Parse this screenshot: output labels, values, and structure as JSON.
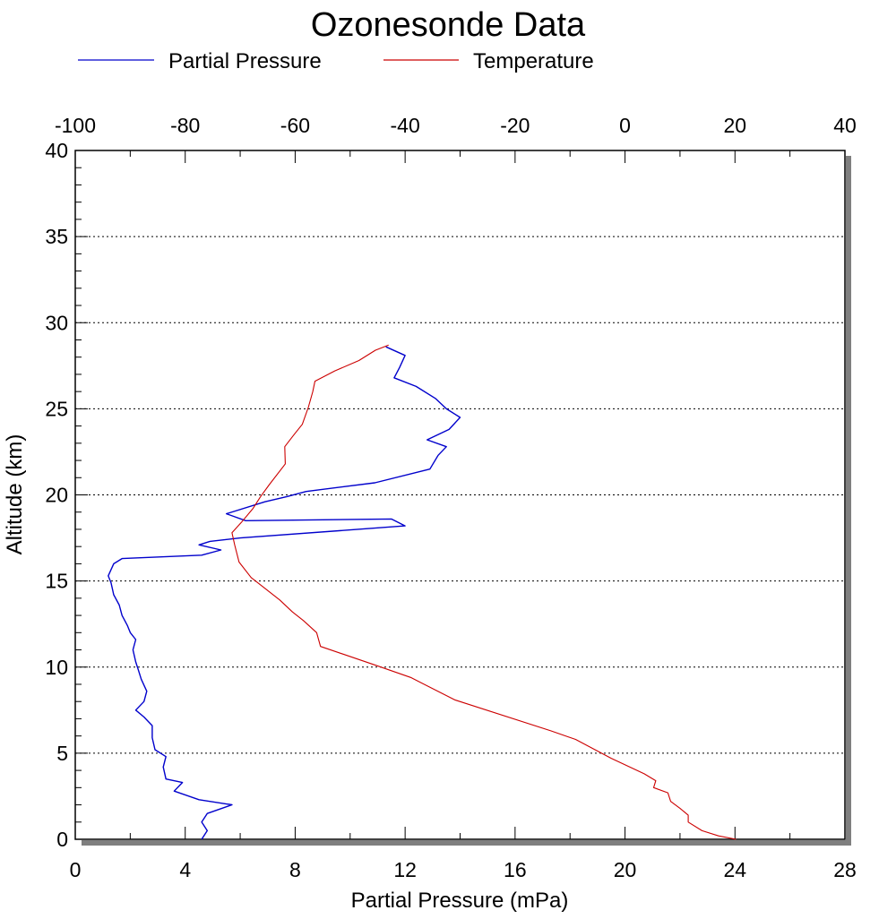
{
  "chart_data": {
    "type": "line",
    "title": "Ozonesonde Data",
    "xlabel": "Partial Pressure (mPa)",
    "ylabel": "Altitude (km)",
    "x_ticks": [
      "0",
      "4",
      "8",
      "12",
      "16",
      "20",
      "24",
      "28"
    ],
    "x2_ticks": [
      "-100",
      "-80",
      "-60",
      "-40",
      "-20",
      "0",
      "20",
      "40"
    ],
    "y_ticks": [
      "0",
      "5",
      "10",
      "15",
      "20",
      "25",
      "30",
      "35",
      "40"
    ],
    "xlim": [
      0,
      28
    ],
    "x2lim": [
      -100,
      40
    ],
    "ylim": [
      0,
      40
    ],
    "grid": "horizontal dotted at major y ticks",
    "legend_position": "top-left",
    "colors": {
      "partial_pressure": "#0000cc",
      "temperature": "#cc0000",
      "shadow": "#7f7f7f"
    },
    "series": [
      {
        "name": "Partial Pressure",
        "axis": "bottom",
        "points": [
          [
            4.6,
            0.0
          ],
          [
            4.8,
            0.5
          ],
          [
            4.6,
            1.0
          ],
          [
            4.8,
            1.5
          ],
          [
            5.7,
            2.0
          ],
          [
            4.5,
            2.3
          ],
          [
            3.6,
            2.8
          ],
          [
            3.9,
            3.3
          ],
          [
            3.3,
            3.5
          ],
          [
            3.2,
            4.2
          ],
          [
            3.3,
            4.8
          ],
          [
            2.9,
            5.2
          ],
          [
            2.8,
            5.9
          ],
          [
            2.8,
            6.6
          ],
          [
            2.5,
            7.1
          ],
          [
            2.2,
            7.5
          ],
          [
            2.5,
            8.0
          ],
          [
            2.6,
            8.6
          ],
          [
            2.4,
            9.3
          ],
          [
            2.3,
            9.8
          ],
          [
            2.2,
            10.3
          ],
          [
            2.1,
            11.0
          ],
          [
            2.2,
            11.6
          ],
          [
            2.0,
            12.0
          ],
          [
            1.9,
            12.4
          ],
          [
            1.7,
            13.0
          ],
          [
            1.6,
            13.6
          ],
          [
            1.4,
            14.2
          ],
          [
            1.3,
            14.9
          ],
          [
            1.2,
            15.3
          ],
          [
            1.4,
            16.0
          ],
          [
            1.7,
            16.3
          ],
          [
            4.6,
            16.5
          ],
          [
            5.3,
            16.8
          ],
          [
            4.5,
            17.1
          ],
          [
            4.9,
            17.3
          ],
          [
            6.0,
            17.5
          ],
          [
            12.0,
            18.2
          ],
          [
            11.5,
            18.6
          ],
          [
            6.2,
            18.5
          ],
          [
            5.5,
            18.9
          ],
          [
            6.9,
            19.6
          ],
          [
            7.7,
            19.9
          ],
          [
            8.4,
            20.2
          ],
          [
            10.9,
            20.7
          ],
          [
            12.9,
            21.5
          ],
          [
            13.2,
            22.3
          ],
          [
            13.5,
            22.8
          ],
          [
            12.8,
            23.2
          ],
          [
            13.6,
            23.8
          ],
          [
            14.0,
            24.5
          ],
          [
            13.5,
            25.0
          ],
          [
            13.1,
            25.6
          ],
          [
            12.4,
            26.3
          ],
          [
            11.6,
            26.8
          ],
          [
            11.8,
            27.4
          ],
          [
            12.0,
            28.1
          ],
          [
            11.3,
            28.6
          ]
        ]
      },
      {
        "name": "Temperature",
        "axis": "top",
        "points": [
          [
            20.2,
            0.0
          ],
          [
            17.0,
            0.2
          ],
          [
            14.0,
            0.5
          ],
          [
            11.5,
            1.0
          ],
          [
            11.5,
            1.4
          ],
          [
            10.0,
            1.8
          ],
          [
            8.3,
            2.2
          ],
          [
            7.8,
            2.7
          ],
          [
            5.2,
            3.0
          ],
          [
            5.6,
            3.4
          ],
          [
            3.5,
            3.8
          ],
          [
            -2.5,
            4.7
          ],
          [
            -9.0,
            5.8
          ],
          [
            -13.5,
            6.3
          ],
          [
            -31.0,
            8.1
          ],
          [
            -39.0,
            9.4
          ],
          [
            -45.3,
            10.1
          ],
          [
            -55.4,
            11.2
          ],
          [
            -56.1,
            12.0
          ],
          [
            -58.5,
            12.7
          ],
          [
            -60.5,
            13.2
          ],
          [
            -62.8,
            13.9
          ],
          [
            -66.0,
            14.7
          ],
          [
            -68.0,
            15.2
          ],
          [
            -70.2,
            16.1
          ],
          [
            -71.0,
            17.1
          ],
          [
            -71.5,
            17.8
          ],
          [
            -69.8,
            18.4
          ],
          [
            -67.7,
            19.2
          ],
          [
            -66.3,
            19.9
          ],
          [
            -64.7,
            20.6
          ],
          [
            -61.8,
            21.8
          ],
          [
            -61.9,
            22.8
          ],
          [
            -60.2,
            23.5
          ],
          [
            -58.7,
            24.1
          ],
          [
            -57.6,
            25.1
          ],
          [
            -56.8,
            26.0
          ],
          [
            -56.4,
            26.6
          ],
          [
            -52.8,
            27.2
          ],
          [
            -48.4,
            27.8
          ],
          [
            -45.4,
            28.4
          ],
          [
            -43.0,
            28.7
          ]
        ]
      }
    ]
  }
}
